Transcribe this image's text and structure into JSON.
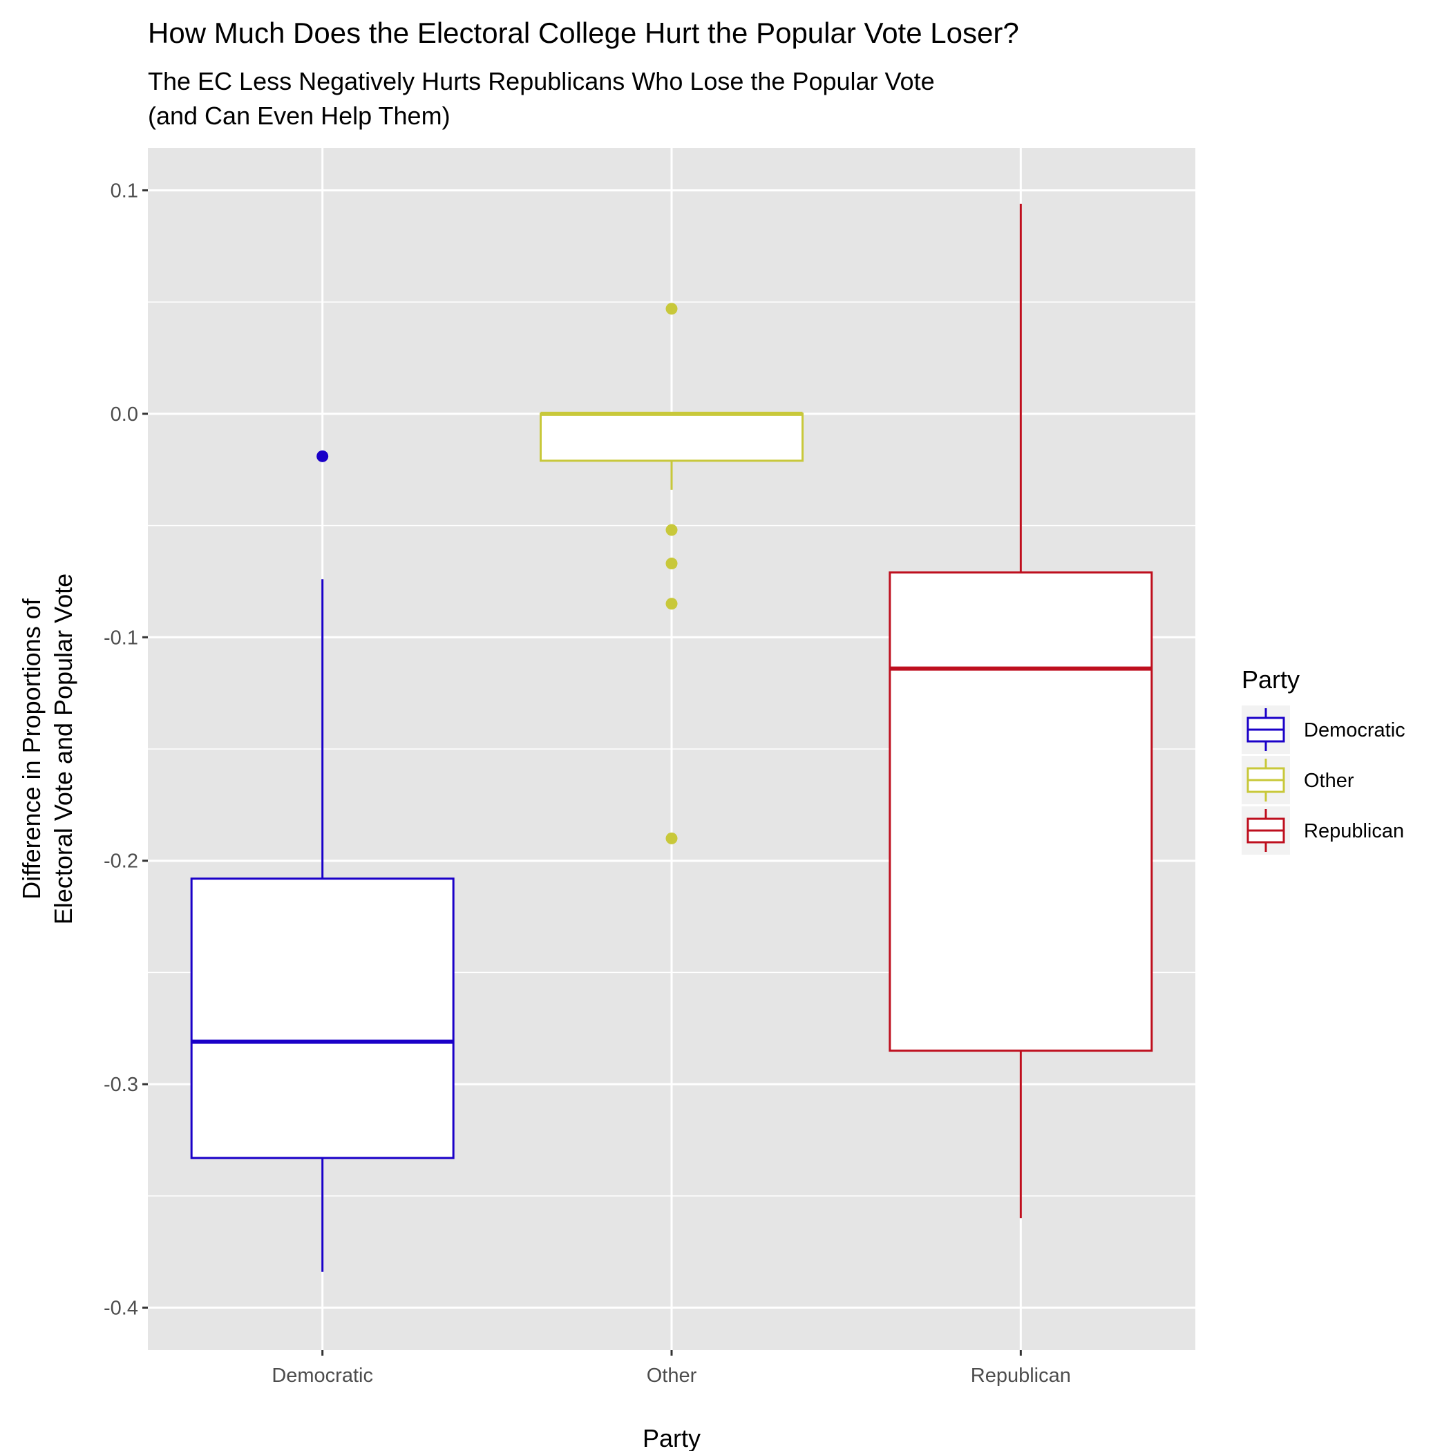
{
  "chart_data": {
    "type": "boxplot",
    "title": "How Much Does the Electoral College Hurt the Popular Vote Loser?",
    "subtitle_lines": [
      "The EC Less Negatively Hurts Republicans Who Lose the Popular Vote",
      "(and Can Even Help Them)"
    ],
    "xlabel": "Party",
    "ylabel_lines": [
      "Difference in Proportions of",
      "Electoral Vote and Popular Vote"
    ],
    "ylim": [
      -0.419,
      0.119
    ],
    "y_ticks": [
      0.1,
      0.0,
      -0.1,
      -0.2,
      -0.3,
      -0.4
    ],
    "y_tick_labels": [
      "0.1",
      "0.0",
      "-0.1",
      "-0.2",
      "-0.3",
      "-0.4"
    ],
    "categories": [
      "Democratic",
      "Other",
      "Republican"
    ],
    "grid": true,
    "legend": {
      "title": "Party",
      "position": "right",
      "entries": [
        "Democratic",
        "Other",
        "Republican"
      ]
    },
    "series": [
      {
        "name": "Democratic",
        "color": "#1a00c8",
        "whisker_low": -0.384,
        "q1": -0.333,
        "median": -0.281,
        "q3": -0.208,
        "whisker_high": -0.074,
        "outliers": [
          -0.019
        ]
      },
      {
        "name": "Other",
        "color": "#c8c83a",
        "whisker_low": -0.034,
        "q1": -0.021,
        "median": 0.0,
        "q3": 0.0,
        "whisker_high": 0.0,
        "outliers": [
          0.047,
          -0.052,
          -0.067,
          -0.085,
          -0.19
        ]
      },
      {
        "name": "Republican",
        "color": "#be0f1e",
        "whisker_low": -0.36,
        "q1": -0.285,
        "median": -0.114,
        "q3": -0.071,
        "whisker_high": 0.094,
        "outliers": []
      }
    ]
  }
}
